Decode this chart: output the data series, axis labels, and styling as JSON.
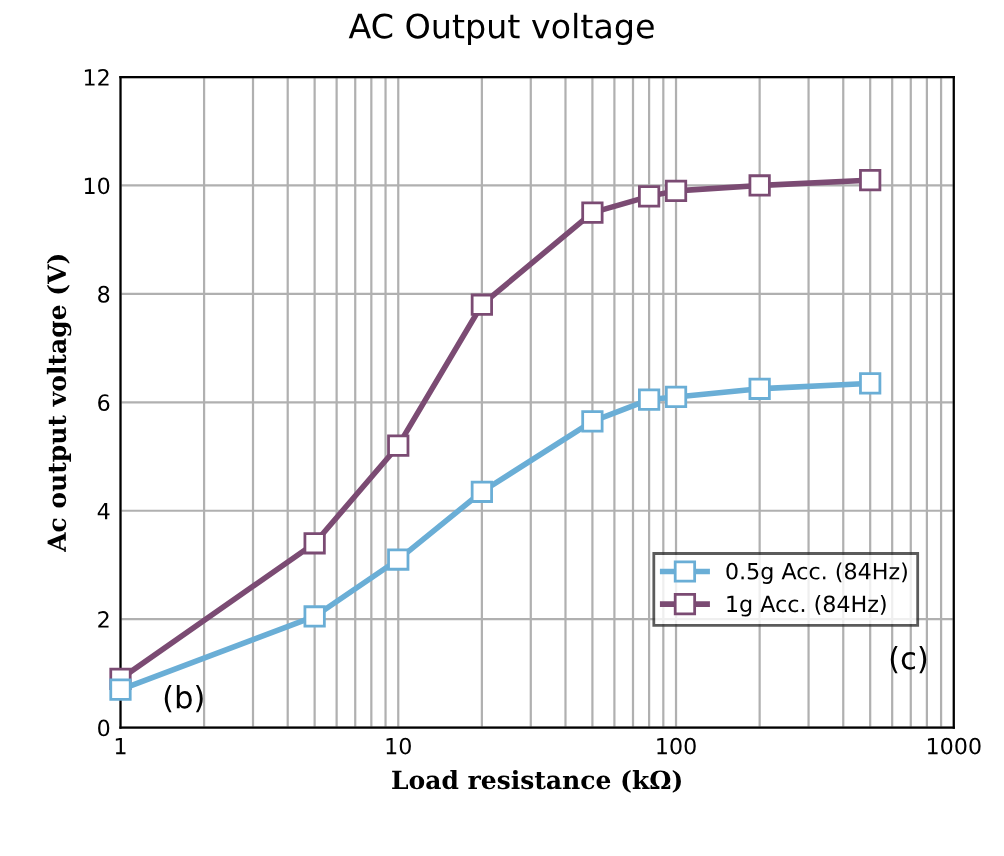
{
  "chart_data": {
    "type": "line",
    "title": "AC Output voltage",
    "xlabel": "Load resistance (kΩ)",
    "ylabel": "Ac output voltage (V)",
    "x": [
      1,
      5,
      10,
      20,
      50,
      80,
      100,
      200,
      500
    ],
    "series": [
      {
        "name": "0.5g Acc. (84Hz)",
        "color": "#6aaed6",
        "values": [
          0.7,
          2.05,
          3.1,
          4.35,
          5.65,
          6.05,
          6.1,
          6.25,
          6.35
        ]
      },
      {
        "name": "1g Acc. (84Hz)",
        "color": "#7b4b73",
        "values": [
          0.9,
          3.4,
          5.2,
          7.8,
          9.5,
          9.8,
          9.9,
          10.0,
          10.1
        ]
      }
    ],
    "log": "x",
    "xlim": [
      1,
      1000
    ],
    "ylim": [
      0,
      12
    ],
    "xticks": [
      1,
      {
        "value": 2,
        "label": null
      },
      {
        "value": 3,
        "label": null
      },
      {
        "value": 4,
        "label": null
      },
      {
        "value": 5,
        "label": null
      },
      {
        "value": 6,
        "label": null
      },
      {
        "value": 7,
        "label": null
      },
      {
        "value": 8,
        "label": null
      },
      {
        "value": 9,
        "label": null
      },
      10,
      {
        "value": 20,
        "label": null
      },
      {
        "value": 30,
        "label": null
      },
      {
        "value": 40,
        "label": null
      },
      {
        "value": 50,
        "label": null
      },
      {
        "value": 60,
        "label": null
      },
      {
        "value": 70,
        "label": null
      },
      {
        "value": 80,
        "label": null
      },
      {
        "value": 90,
        "label": null
      },
      100,
      {
        "value": 200,
        "label": null
      },
      {
        "value": 300,
        "label": null
      },
      {
        "value": 400,
        "label": null
      },
      {
        "value": 500,
        "label": null
      },
      {
        "value": 600,
        "label": null
      },
      {
        "value": 700,
        "label": null
      },
      {
        "value": 800,
        "label": null
      },
      {
        "value": 900,
        "label": null
      },
      1000
    ],
    "yticks": [
      0,
      2,
      4,
      6,
      8,
      10,
      12
    ],
    "grid": true,
    "legend": "bottom right",
    "marker": "square",
    "line_style": "solid",
    "annotations": [
      "(b)",
      "(c)"
    ]
  }
}
